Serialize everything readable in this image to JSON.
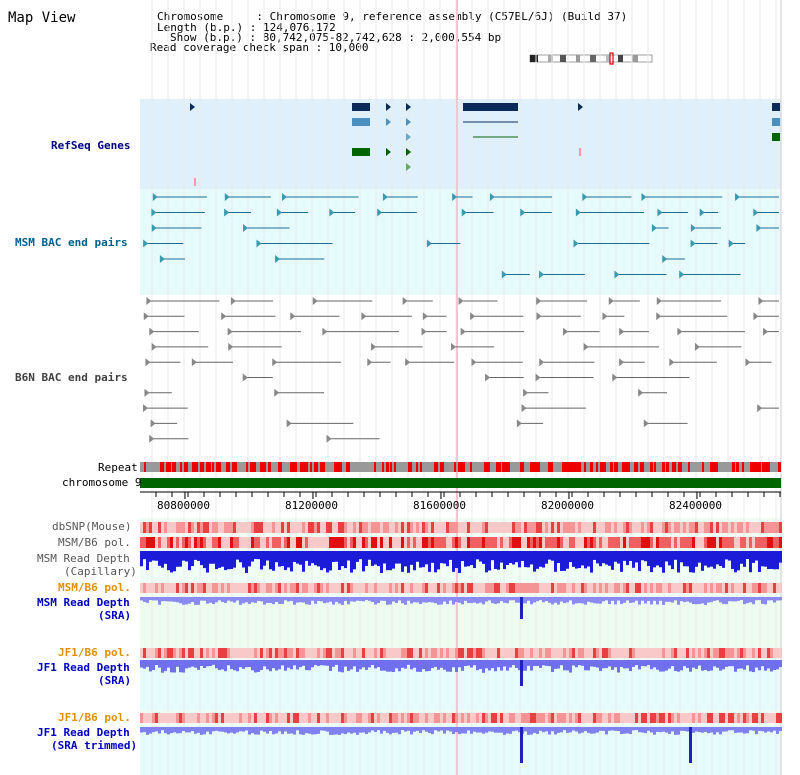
{
  "view": {
    "title": "Map View",
    "info": {
      "chromosome": "Chromosome     : Chromosome 9, reference assembly (C57BL/6J) (Build 37)",
      "length": "Length (b.p.) : 124,076,172",
      "show": "Show (b.p.) : 80,742,075-82,742,628 : 2,000,554 bp",
      "coverage": "Read coverage check span : 10,000"
    }
  },
  "tracks": {
    "refseq": "RefSeq Genes",
    "msm_bac": "MSM BAC end pairs",
    "b6n_bac": "B6N BAC end pairs",
    "repeat": "Repeat",
    "chromosome": "chromosome 9",
    "dbsnp": "dbSNP(Mouse)",
    "msm_b6_pol": "MSM/B6 pol.",
    "msm_rd_cap_1": "MSM Read Depth",
    "msm_rd_cap_2": "(Capillary)",
    "msm_b6_pol_sra": "MSM/B6 pol.",
    "msm_rd_sra_1": "MSM Read Depth",
    "msm_rd_sra_2": "(SRA)",
    "jf1_b6_pol_1": "JF1/B6 pol.",
    "jf1_rd_1": "JF1 Read Depth",
    "jf1_rd_2": "(SRA)",
    "jf1_b6_pol_2": "JF1/B6 pol.",
    "jf1_rdt_1": "JF1 Read Depth",
    "jf1_rdt_2": "(SRA trimmed)"
  },
  "axis": {
    "ticks": [
      "80800000",
      "81200000",
      "81600000",
      "82000000",
      "82400000"
    ]
  },
  "colors": {
    "refseq_bg": "#dff0fb",
    "msm_bac_bg": "#e6fafc",
    "refseq_label": "#000080",
    "msm_label": "#006090",
    "b6n_label": "#404040",
    "chrom_green": "#006400",
    "pol_orange": "#e09000",
    "depth_blue": "#0000c0"
  }
}
